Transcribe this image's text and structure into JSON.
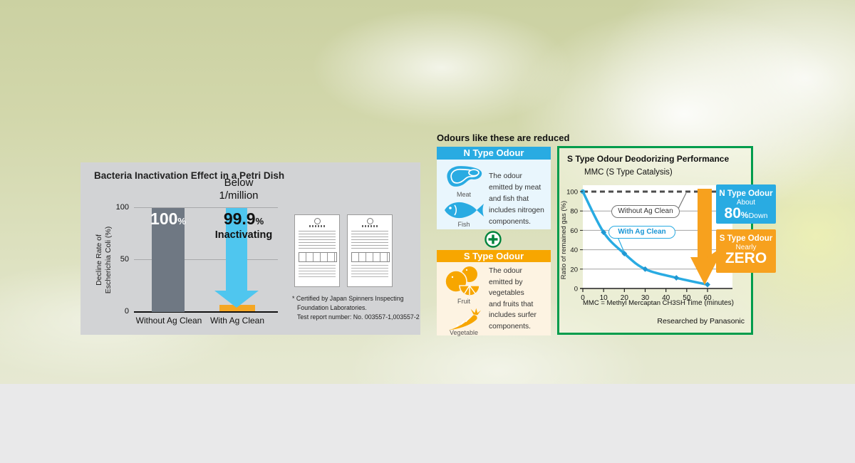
{
  "left_panel": {
    "title": "Bacteria Inactivation Effect in a Petri Dish",
    "y_axis": {
      "label_line1": "Decline Rate of",
      "label_line2": "Escherichia Coli (%)",
      "ticks": [
        "100",
        "50",
        "0"
      ]
    },
    "annotation": {
      "line1": "Below",
      "line2": "1/million"
    },
    "bar_without": {
      "value": "100",
      "unit": "%",
      "label": "Without Ag Clean"
    },
    "bar_with": {
      "value": "99.9",
      "unit": "%",
      "caption": "Inactivating",
      "label": "With Ag Clean"
    },
    "footnote": {
      "line1": "* Certified by Japan Spinners Inspecting",
      "line2": "Foundation Laboratories.",
      "line3": "Test report number: No. 003557-1,003557-2"
    }
  },
  "middle": {
    "heading": "Odours like these are reduced",
    "n_box": {
      "header": "N Type Odour",
      "meat_label": "Meat",
      "fish_label": "Fish",
      "lines": [
        "The odour",
        "emitted by meat",
        "and fish that",
        "includes nitrogen",
        "components."
      ]
    },
    "s_box": {
      "header": "S Type Odour",
      "fruit_label": "Fruit",
      "vegetable_label": "Vegetable",
      "lines": [
        "The odour",
        "emitted by",
        "vegetables",
        "and fruits that",
        "includes surfer",
        "components."
      ]
    }
  },
  "right_chart": {
    "title": "S Type Odour Deodorizing Performance",
    "subtitle": "MMC (S Type Catalysis)",
    "y_label": "Ratio of remained gas (%)",
    "pill_without": "Without Ag Clean",
    "pill_with": "With Ag Clean",
    "x_note": "MMC = Methyl Mercaptan CH3SH",
    "x_axis_label": "Time (minutes)",
    "credit": "Researched by Panasonic",
    "callout_blue": {
      "line1": "N Type Odour",
      "line2": "About",
      "big": "80",
      "unit": "%",
      "small": "Down"
    },
    "callout_orange": {
      "line1": "S Type Odour",
      "line2": "Nearly",
      "big": "ZERO"
    }
  },
  "chart_data": [
    {
      "type": "bar",
      "title": "Bacteria Inactivation Effect in a Petri Dish",
      "ylabel": "Decline Rate of Escherichia Coli (%)",
      "categories": [
        "Without Ag Clean",
        "With Ag Clean"
      ],
      "values": [
        100,
        0.1
      ],
      "value_labels": [
        "100%",
        "99.9% Inactivating"
      ],
      "annotations": [
        "Below 1/million"
      ],
      "y_ticks": [
        0,
        50,
        100
      ],
      "ylim": [
        0,
        100
      ],
      "grid": true
    },
    {
      "type": "line",
      "title": "S Type Odour Deodorizing Performance",
      "subtitle": "MMC (S Type Catalysis)",
      "xlabel": "Time (minutes)",
      "ylabel": "Ratio of remained gas (%)",
      "x_note": "MMC = Methyl Mercaptan CH3SH",
      "credit": "Researched by Panasonic",
      "x_ticks": [
        0,
        10,
        20,
        30,
        40,
        50,
        60
      ],
      "y_ticks": [
        0,
        20,
        40,
        60,
        80,
        100
      ],
      "xlim": [
        0,
        60
      ],
      "ylim": [
        0,
        100
      ],
      "grid": true,
      "series": [
        {
          "name": "Without Ag Clean",
          "style": "dashed",
          "x": [
            0,
            60
          ],
          "y": [
            100,
            100
          ]
        },
        {
          "name": "With Ag Clean",
          "style": "solid",
          "x": [
            0,
            10,
            20,
            30,
            45,
            60
          ],
          "y": [
            100,
            58,
            36,
            20,
            11,
            4
          ]
        }
      ]
    }
  ],
  "colors": {
    "blue": "#29abe2",
    "n_body_blue": "#e9f6fd",
    "orange_header": "#f7a600",
    "s_body_cream": "#fdf3e2",
    "callout_orange": "#f7a11e",
    "green_border": "#009c4c",
    "plus_green": "#00843d",
    "arrow_blue": "#4fc6ef",
    "bar_gray": "#6f7883",
    "panel_gray": "#d2d3d5",
    "orange_bar": "#f5a724",
    "dashed_line": "#4d4d4d",
    "bottom_strip": "#e9e9ea"
  }
}
